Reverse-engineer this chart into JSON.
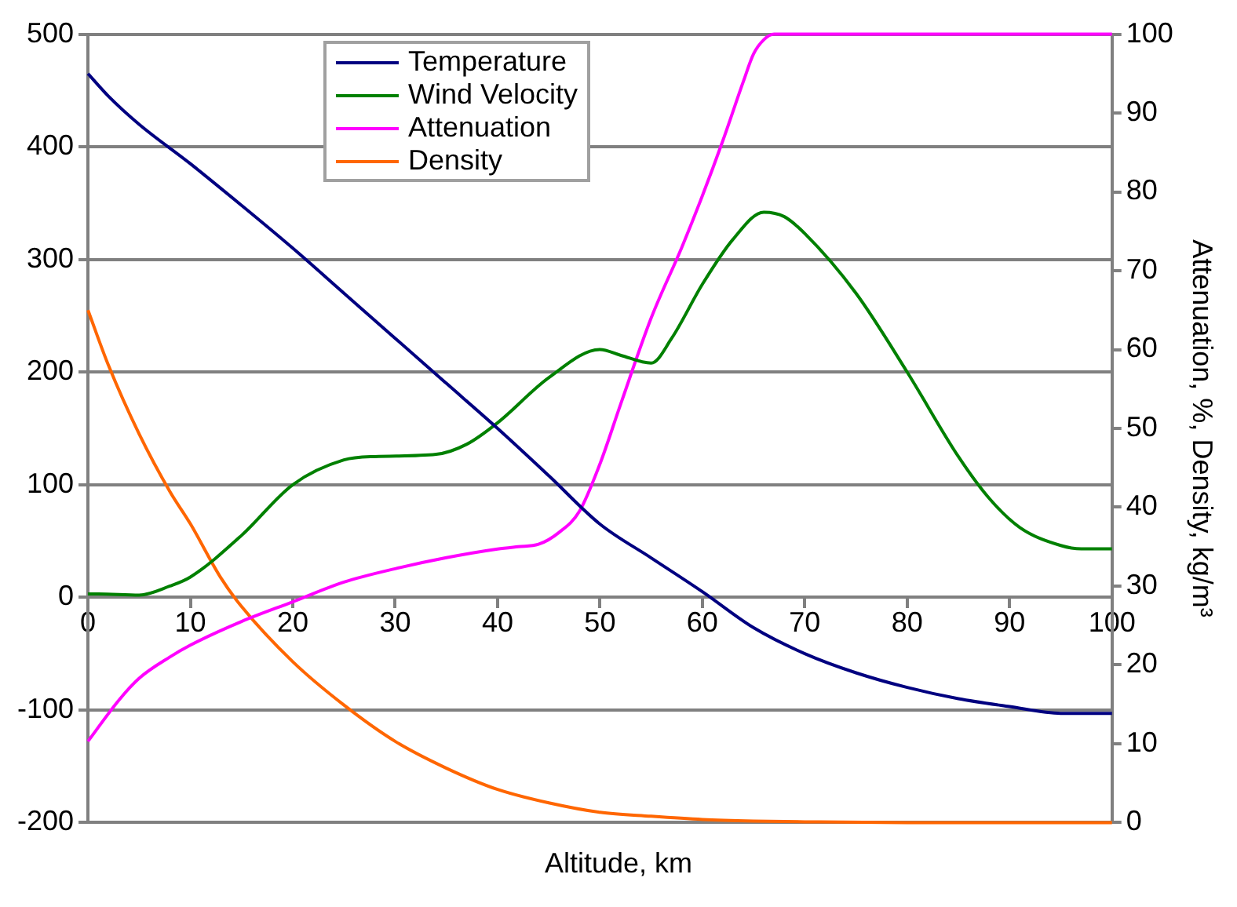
{
  "chart_data": {
    "type": "line",
    "xlabel": "Altitude, km",
    "y2label": "Attenuation, %, Density, kg/m³",
    "xlim": [
      0,
      100
    ],
    "xticks": [
      0,
      10,
      20,
      30,
      40,
      50,
      60,
      70,
      80,
      90,
      100
    ],
    "ylim": [
      -200,
      500
    ],
    "yticks": [
      -200,
      -100,
      0,
      100,
      200,
      300,
      400,
      500
    ],
    "y2lim": [
      0,
      100
    ],
    "y2ticks": [
      0,
      10,
      20,
      30,
      40,
      50,
      60,
      70,
      80,
      90,
      100
    ],
    "grid": "y",
    "legend": "top left",
    "marker": "none",
    "line_style": "solid",
    "series": [
      {
        "name": "Temperature",
        "color": "#000080",
        "x": [
          0,
          2,
          5,
          10,
          15,
          20,
          25,
          30,
          35,
          40,
          45,
          50,
          55,
          60,
          65,
          70,
          75,
          80,
          85,
          90,
          95,
          100
        ],
        "values": [
          465,
          445,
          420,
          385,
          348,
          310,
          270,
          230,
          190,
          150,
          108,
          65,
          35,
          5,
          -27,
          -50,
          -67,
          -80,
          -90,
          -97,
          -103,
          -103
        ]
      },
      {
        "name": "Wind Velocity",
        "color": "#008000",
        "x": [
          0,
          1,
          5,
          8,
          10,
          15,
          20,
          25,
          28,
          34,
          37,
          40,
          45,
          50,
          52,
          55,
          57,
          60,
          63,
          66,
          68,
          70,
          75,
          80,
          85,
          88,
          91,
          95,
          97,
          100
        ],
        "values": [
          3,
          3,
          2,
          10,
          18,
          55,
          100,
          122,
          125,
          127,
          136,
          155,
          195,
          220,
          215,
          208,
          230,
          278,
          318,
          342,
          338,
          323,
          270,
          200,
          125,
          88,
          62,
          46,
          43,
          43
        ]
      },
      {
        "name": "Attenuation",
        "color": "#ff00ff",
        "axis": "y2",
        "x": [
          0,
          3,
          5,
          8,
          10,
          15,
          20,
          25,
          30,
          35,
          40,
          42,
          44,
          46,
          48,
          50,
          52,
          55,
          58,
          60,
          62,
          64,
          65,
          66,
          67,
          70,
          75,
          80,
          90,
          100
        ],
        "values": [
          10.3,
          15.5,
          18.3,
          21,
          22.5,
          25.5,
          28,
          30.5,
          32.2,
          33.6,
          34.7,
          35,
          35.3,
          36.8,
          39.5,
          45.5,
          53,
          64,
          73,
          79.5,
          86.5,
          94,
          97.5,
          99.3,
          100,
          100,
          100,
          100,
          100,
          100
        ]
      },
      {
        "name": "Density",
        "color": "#ff6600",
        "axis": "y2",
        "x": [
          0,
          2,
          5,
          8,
          10,
          13,
          15,
          20,
          25,
          30,
          35,
          40,
          45,
          50,
          55,
          60,
          65,
          70,
          80,
          90,
          100
        ],
        "values": [
          65,
          58,
          49.3,
          42,
          37.9,
          31,
          27.4,
          20.4,
          14.9,
          10.3,
          6.9,
          4.2,
          2.5,
          1.3,
          0.8,
          0.4,
          0.2,
          0.1,
          0,
          0,
          0
        ]
      }
    ]
  }
}
